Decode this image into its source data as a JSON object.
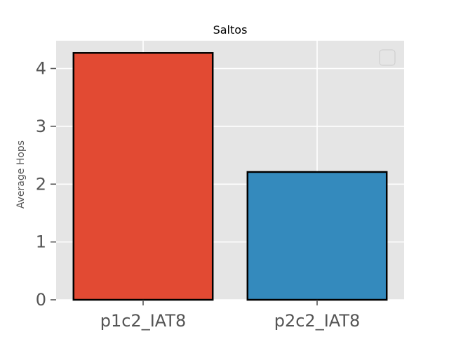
{
  "chart_data": {
    "type": "bar",
    "title": "Saltos",
    "xlabel": "",
    "ylabel": "Average Hops",
    "categories": [
      "p1c2_IAT8",
      "p2c2_IAT8"
    ],
    "values": [
      4.27,
      2.21
    ],
    "bar_colors": [
      "#E24A33",
      "#348ABD"
    ],
    "bar_edge_color": "#000000",
    "yticks": [
      0,
      1,
      2,
      3,
      4
    ],
    "ytick_labels": [
      "0",
      "1",
      "2",
      "3",
      "4"
    ],
    "ylim": [
      0,
      4.48
    ],
    "grid": true,
    "legend": "top-right, empty",
    "plot_background": "#E5E5E5",
    "grid_color": "#FFFFFF"
  }
}
